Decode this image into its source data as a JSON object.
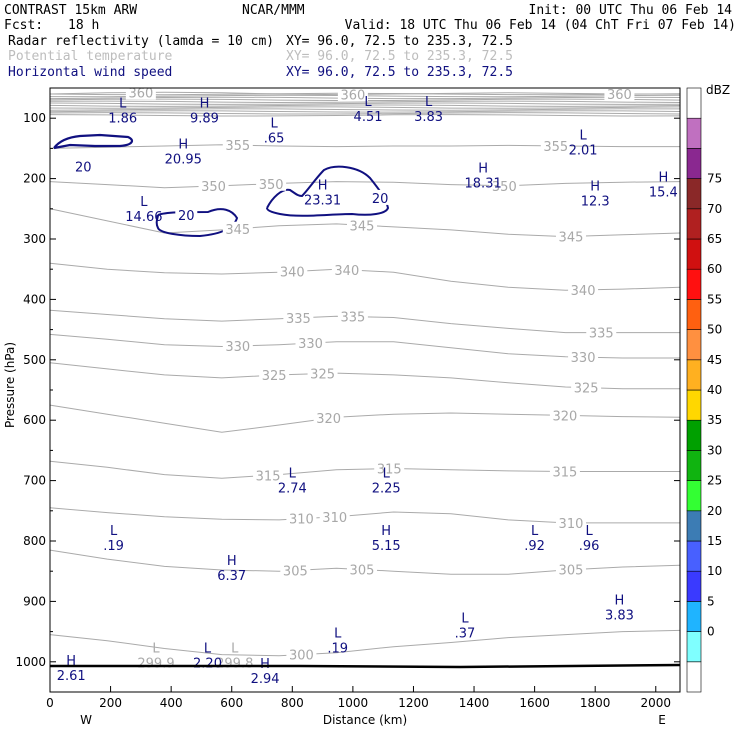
{
  "header": {
    "model": "CONTRAST 15km ARW",
    "org": "NCAR/MMM",
    "init": "Init: 00 UTC Thu 06 Feb 14",
    "fcst_label": "Fcst:",
    "fcst_value": "18 h",
    "valid": "Valid: 18 UTC Thu 06 Feb 14 (04 ChT Fri 07 Feb 14)",
    "fields": [
      {
        "name": "Radar reflectivity (lamda = 10 cm)",
        "xy": "XY=  96.0, 72.5 to 235.3, 72.5",
        "style": "black"
      },
      {
        "name": "Potential temperature",
        "xy": "XY=  96.0, 72.5 to 235.3, 72.5",
        "style": "gray"
      },
      {
        "name": "Horizontal wind speed",
        "xy": "XY=  96.0, 72.5 to 235.3, 72.5",
        "style": "blue"
      }
    ]
  },
  "chart_data": {
    "type": "cross-section",
    "xlabel": "Distance (km)",
    "ylabel": "Pressure (hPa)",
    "xlim": [
      0,
      2080
    ],
    "ylim": [
      1050,
      50
    ],
    "x_ticks": [
      0,
      200,
      400,
      600,
      800,
      1000,
      1200,
      1400,
      1600,
      1800,
      2000
    ],
    "y_ticks": [
      100,
      200,
      300,
      400,
      500,
      600,
      700,
      800,
      900,
      1000
    ],
    "west_label": "W",
    "east_label": "E",
    "colors": {
      "theta": "#aaaaaa",
      "wind": "#101080",
      "ground": "#000000"
    },
    "theta_contours": [
      {
        "label": "360",
        "pressure": [
          60,
          58,
          57,
          58,
          60,
          61,
          60,
          59,
          58,
          59,
          60,
          60
        ],
        "labels_at": [
          [
            300,
            "360"
          ],
          [
            1000,
            "360"
          ],
          [
            1880,
            "360"
          ]
        ]
      },
      {
        "label": "355",
        "pressure": [
          150,
          148,
          146,
          144,
          146,
          147,
          146,
          146,
          145,
          146,
          147,
          147
        ],
        "labels_at": [
          [
            620,
            "355"
          ],
          [
            1670,
            "355"
          ]
        ]
      },
      {
        "label": "350",
        "pressure": [
          205,
          210,
          215,
          212,
          208,
          205,
          206,
          210,
          212,
          208,
          206,
          205
        ],
        "labels_at": [
          [
            540,
            "350"
          ],
          [
            730,
            "350"
          ],
          [
            1500,
            "350"
          ]
        ]
      },
      {
        "label": "345",
        "pressure": [
          250,
          270,
          290,
          285,
          278,
          275,
          280,
          285,
          292,
          296,
          293,
          290
        ],
        "labels_at": [
          [
            620,
            "345"
          ],
          [
            1030,
            "345"
          ],
          [
            1720,
            "345"
          ]
        ]
      },
      {
        "label": "340",
        "pressure": [
          340,
          350,
          356,
          358,
          355,
          350,
          355,
          370,
          380,
          385,
          383,
          380
        ],
        "labels_at": [
          [
            800,
            "340"
          ],
          [
            980,
            "340"
          ],
          [
            1760,
            "340"
          ]
        ]
      },
      {
        "label": "335",
        "pressure": [
          418,
          425,
          432,
          436,
          432,
          428,
          430,
          440,
          448,
          455,
          455,
          455
        ],
        "labels_at": [
          [
            820,
            "335"
          ],
          [
            1000,
            "335"
          ],
          [
            1820,
            "335"
          ]
        ]
      },
      {
        "label": "330",
        "pressure": [
          458,
          466,
          475,
          478,
          475,
          470,
          470,
          480,
          490,
          495,
          497,
          497
        ],
        "labels_at": [
          [
            620,
            "330"
          ],
          [
            860,
            "330"
          ],
          [
            1760,
            "330"
          ]
        ]
      },
      {
        "label": "325",
        "pressure": [
          505,
          515,
          525,
          530,
          525,
          522,
          525,
          530,
          538,
          545,
          548,
          548
        ],
        "labels_at": [
          [
            740,
            "325"
          ],
          [
            900,
            "325"
          ],
          [
            1770,
            "325"
          ]
        ]
      },
      {
        "label": "320",
        "pressure": [
          575,
          590,
          605,
          620,
          608,
          595,
          590,
          588,
          590,
          592,
          594,
          595
        ],
        "labels_at": [
          [
            920,
            "320"
          ],
          [
            1700,
            "320"
          ]
        ]
      },
      {
        "label": "315",
        "pressure": [
          668,
          678,
          690,
          696,
          690,
          682,
          680,
          682,
          684,
          685,
          685,
          685
        ],
        "labels_at": [
          [
            720,
            "315"
          ],
          [
            1120,
            "315"
          ],
          [
            1700,
            "315"
          ]
        ]
      },
      {
        "label": "310",
        "pressure": [
          745,
          753,
          760,
          764,
          765,
          760,
          752,
          755,
          765,
          770,
          770,
          770
        ],
        "labels_at": [
          [
            830,
            "310"
          ],
          [
            940,
            "310"
          ],
          [
            1720,
            "310"
          ]
        ]
      },
      {
        "label": "305",
        "pressure": [
          815,
          830,
          842,
          848,
          850,
          845,
          850,
          855,
          855,
          848,
          843,
          840
        ],
        "labels_at": [
          [
            810,
            "305"
          ],
          [
            1030,
            "305"
          ],
          [
            1720,
            "305"
          ]
        ]
      },
      {
        "label": "300",
        "pressure": [
          955,
          965,
          978,
          988,
          990,
          985,
          975,
          968,
          960,
          955,
          950,
          948
        ],
        "labels_at": [
          [
            830,
            "300"
          ]
        ]
      }
    ],
    "wind_labels": [
      [
        110,
        180,
        "20"
      ],
      [
        450,
        260,
        "20"
      ],
      [
        1090,
        232,
        "20"
      ]
    ],
    "extrema": [
      {
        "kind": "L",
        "value": "1.86",
        "x": 240,
        "p": 82,
        "field": "wind"
      },
      {
        "kind": "H",
        "value": "9.89",
        "x": 510,
        "p": 82,
        "field": "wind"
      },
      {
        "kind": "L",
        "value": ".65",
        "x": 740,
        "p": 115,
        "field": "wind"
      },
      {
        "kind": "L",
        "value": "4.51",
        "x": 1050,
        "p": 80,
        "field": "wind"
      },
      {
        "kind": "L",
        "value": "3.83",
        "x": 1250,
        "p": 80,
        "field": "wind"
      },
      {
        "kind": "H",
        "value": "20.95",
        "x": 440,
        "p": 150,
        "field": "wind"
      },
      {
        "kind": "L",
        "value": "2.01",
        "x": 1760,
        "p": 135,
        "field": "wind"
      },
      {
        "kind": "H",
        "value": "18.31",
        "x": 1430,
        "p": 190,
        "field": "wind"
      },
      {
        "kind": "H",
        "value": "15.4",
        "x": 2025,
        "p": 205,
        "field": "wind"
      },
      {
        "kind": "H",
        "value": "23.31",
        "x": 900,
        "p": 218,
        "field": "wind"
      },
      {
        "kind": "H",
        "value": "12.3",
        "x": 1800,
        "p": 220,
        "field": "wind"
      },
      {
        "kind": "L",
        "value": "14.66",
        "x": 310,
        "p": 245,
        "field": "wind"
      },
      {
        "kind": "L",
        "value": "2.74",
        "x": 800,
        "p": 695,
        "field": "wind"
      },
      {
        "kind": "L",
        "value": "2.25",
        "x": 1110,
        "p": 695,
        "field": "wind"
      },
      {
        "kind": "L",
        "value": ".19",
        "x": 210,
        "p": 790,
        "field": "wind"
      },
      {
        "kind": "H",
        "value": "6.37",
        "x": 600,
        "p": 840,
        "field": "wind"
      },
      {
        "kind": "H",
        "value": "5.15",
        "x": 1110,
        "p": 790,
        "field": "wind"
      },
      {
        "kind": "L",
        "value": ".92",
        "x": 1600,
        "p": 790,
        "field": "wind"
      },
      {
        "kind": "L",
        "value": ".96",
        "x": 1780,
        "p": 790,
        "field": "wind"
      },
      {
        "kind": "H",
        "value": "3.83",
        "x": 1880,
        "p": 905,
        "field": "wind"
      },
      {
        "kind": "L",
        "value": ".37",
        "x": 1370,
        "p": 935,
        "field": "wind"
      },
      {
        "kind": "L",
        "value": ".19",
        "x": 950,
        "p": 960,
        "field": "wind"
      },
      {
        "kind": "L",
        "value": "299.9",
        "x": 350,
        "p": 985,
        "field": "theta"
      },
      {
        "kind": "L",
        "value": "299.8",
        "x": 610,
        "p": 985,
        "field": "theta"
      },
      {
        "kind": "L",
        "value": "2.20",
        "x": 520,
        "p": 985,
        "field": "wind"
      },
      {
        "kind": "H",
        "value": "2.94",
        "x": 710,
        "p": 1010,
        "field": "wind"
      },
      {
        "kind": "H",
        "value": "2.61",
        "x": 70,
        "p": 1005,
        "field": "wind"
      }
    ]
  },
  "colorbar": {
    "unit": "dBZ",
    "levels": [
      "0",
      "5",
      "10",
      "15",
      "20",
      "25",
      "30",
      "35",
      "40",
      "45",
      "50",
      "55",
      "60",
      "65",
      "70",
      "75"
    ],
    "colors": [
      "#ffffff",
      "#7fffff",
      "#1fb4ff",
      "#3a3aff",
      "#4860ff",
      "#3c7cb4",
      "#33ff33",
      "#10b410",
      "#00a000",
      "#ffd700",
      "#ffb020",
      "#ff9040",
      "#ff6010",
      "#ff1010",
      "#d01010",
      "#b02020",
      "#8a2828",
      "#8a2890",
      "#c070c0",
      "#ffffff"
    ]
  }
}
